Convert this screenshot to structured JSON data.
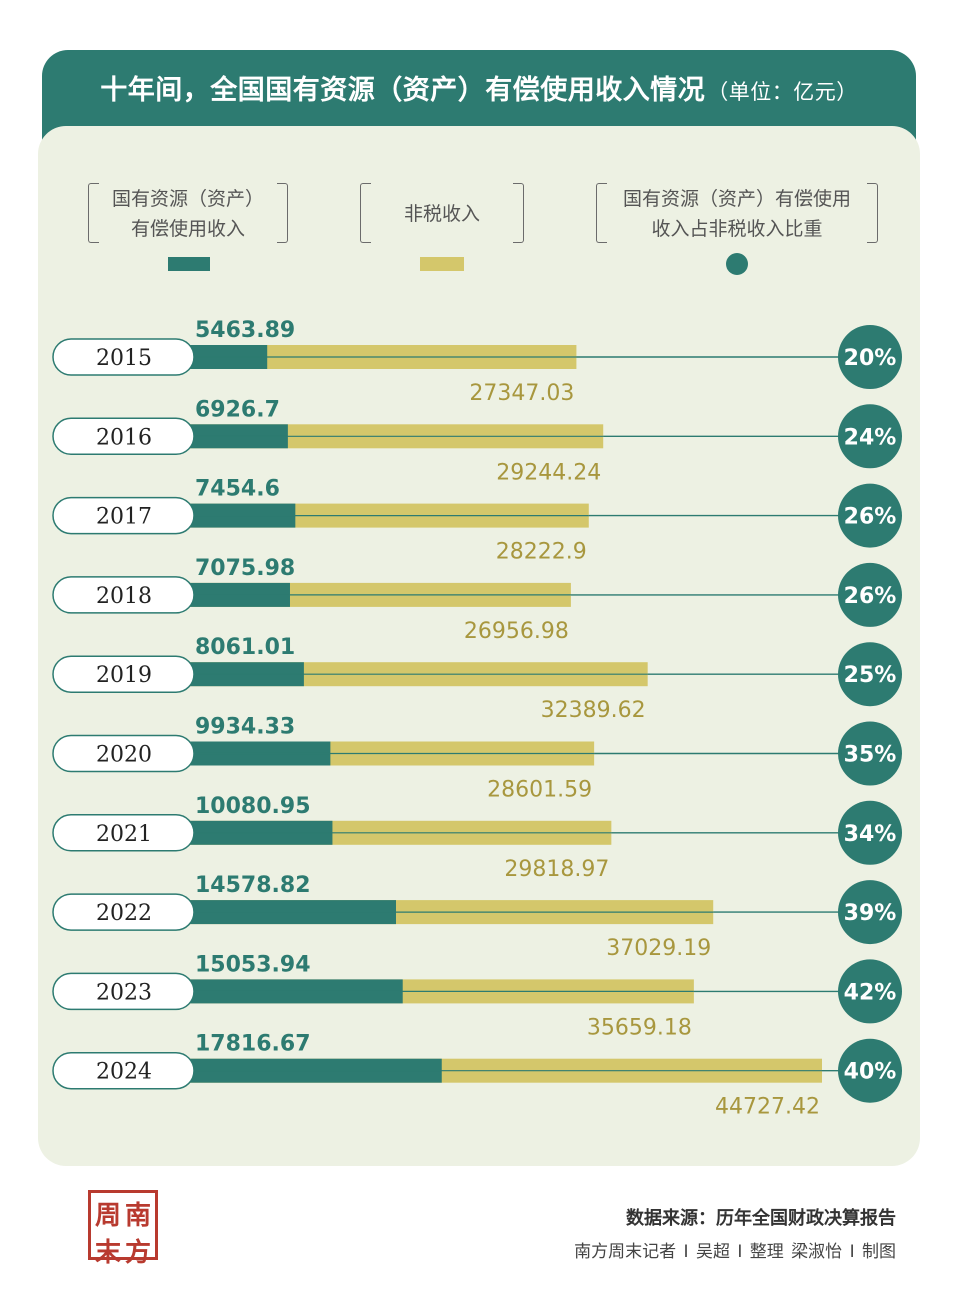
{
  "title": "十年间，全国国有资源（资产）有偿使用收入情况",
  "unit": "（单位：亿元）",
  "legend": {
    "state_asset_income": "国有资源（资产）\n有偿使用收入",
    "non_tax_income": "非税收入",
    "share": "国有资源（资产）有偿使用\n收入占非税收入比重"
  },
  "colors": {
    "state_asset_income": "#2d7b71",
    "non_tax_income": "#d4c76b",
    "share": "#2d7b71",
    "background": "#edf1e3",
    "non_tax_label": "#a8973e"
  },
  "chart_data": {
    "type": "bar",
    "orientation": "horizontal",
    "categories": [
      "2015",
      "2016",
      "2017",
      "2018",
      "2019",
      "2020",
      "2021",
      "2022",
      "2023",
      "2024"
    ],
    "series": [
      {
        "name": "国有资源（资产）有偿使用收入",
        "values": [
          5463.89,
          6926.7,
          7454.6,
          7075.98,
          8061.01,
          9934.33,
          10080.95,
          14578.82,
          15053.94,
          17816.67
        ]
      },
      {
        "name": "非税收入",
        "values": [
          27347.03,
          29244.24,
          28222.9,
          26956.98,
          32389.62,
          28601.59,
          29818.97,
          37029.19,
          35659.18,
          44727.42
        ]
      }
    ],
    "value_labels": {
      "state_asset_income": [
        "5463.89",
        "6926.7",
        "7454.6",
        "7075.98",
        "8061.01",
        "9934.33",
        "10080.95",
        "14578.82",
        "15053.94",
        "17816.67"
      ],
      "non_tax_income": [
        "27347.03",
        "29244.24",
        "28222.9",
        "26956.98",
        "32389.62",
        "28601.59",
        "29818.97",
        "37029.19",
        "35659.18",
        "44727.42"
      ]
    },
    "share_labels": [
      "20%",
      "24%",
      "26%",
      "26%",
      "25%",
      "35%",
      "34%",
      "39%",
      "42%",
      "40%"
    ],
    "xlim": [
      0,
      44727.42
    ]
  },
  "footer": {
    "source": "数据来源：历年全国财政决算报告",
    "credit": "南方周末记者 I 吴超 I 整理    梁淑怡 I 制图"
  },
  "logo": {
    "chars": [
      "周",
      "南",
      "末",
      "方"
    ]
  }
}
